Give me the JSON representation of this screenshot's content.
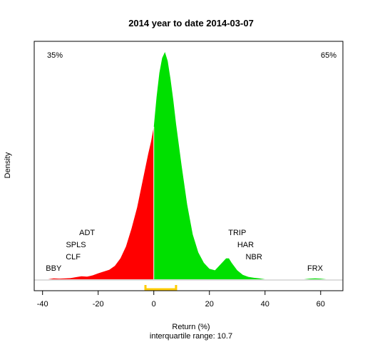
{
  "chart_data": {
    "type": "area",
    "title": "2014  year to date 2014-03-07",
    "xlabel": "Return (%)",
    "ylabel": "Density",
    "subtitle": "interquartile range: 10.7",
    "xlim": [
      -43,
      68
    ],
    "x_ticks": [
      -40,
      -20,
      0,
      20,
      40,
      60
    ],
    "negative_pct_label": "35%",
    "positive_pct_label": "65%",
    "colors": {
      "negative": "#ff0000",
      "positive": "#00e000",
      "negative_label": "#ff0000",
      "positive_label": "#009900",
      "iqr_bracket": "#ffcc00",
      "zero_line": "#ffffff",
      "baseline": "#bbbbbb"
    },
    "grid": false,
    "density": {
      "x": [
        -38,
        -36,
        -34,
        -32,
        -30,
        -28,
        -26,
        -24,
        -22,
        -20,
        -18,
        -16,
        -14,
        -12,
        -10,
        -8,
        -6,
        -4,
        -2,
        -1,
        0,
        1,
        2,
        3,
        4,
        5,
        6,
        7,
        8,
        10,
        12,
        14,
        16,
        18,
        20,
        22,
        24,
        26,
        27,
        28,
        30,
        32,
        34,
        36,
        38,
        40,
        54,
        56,
        58,
        60,
        62
      ],
      "y": [
        0.0,
        0.003,
        0.002,
        0.003,
        0.004,
        0.007,
        0.01,
        0.009,
        0.013,
        0.02,
        0.026,
        0.032,
        0.045,
        0.07,
        0.11,
        0.17,
        0.24,
        0.33,
        0.42,
        0.46,
        0.51,
        0.61,
        0.69,
        0.74,
        0.76,
        0.73,
        0.67,
        0.6,
        0.52,
        0.38,
        0.25,
        0.15,
        0.09,
        0.055,
        0.035,
        0.03,
        0.05,
        0.07,
        0.07,
        0.055,
        0.03,
        0.015,
        0.008,
        0.005,
        0.003,
        0.0,
        0.0,
        0.002,
        0.003,
        0.002,
        0.0
      ]
    },
    "iqr": [
      -3,
      8
    ],
    "tickers": [
      {
        "label": "BBY",
        "x": -36
      },
      {
        "label": "CLF",
        "x": -29
      },
      {
        "label": "SPLS",
        "x": -28
      },
      {
        "label": "ADT",
        "x": -24
      },
      {
        "label": "TRIP",
        "x": 30
      },
      {
        "label": "HAR",
        "x": 33
      },
      {
        "label": "NBR",
        "x": 36
      },
      {
        "label": "FRX",
        "x": 58
      }
    ]
  }
}
